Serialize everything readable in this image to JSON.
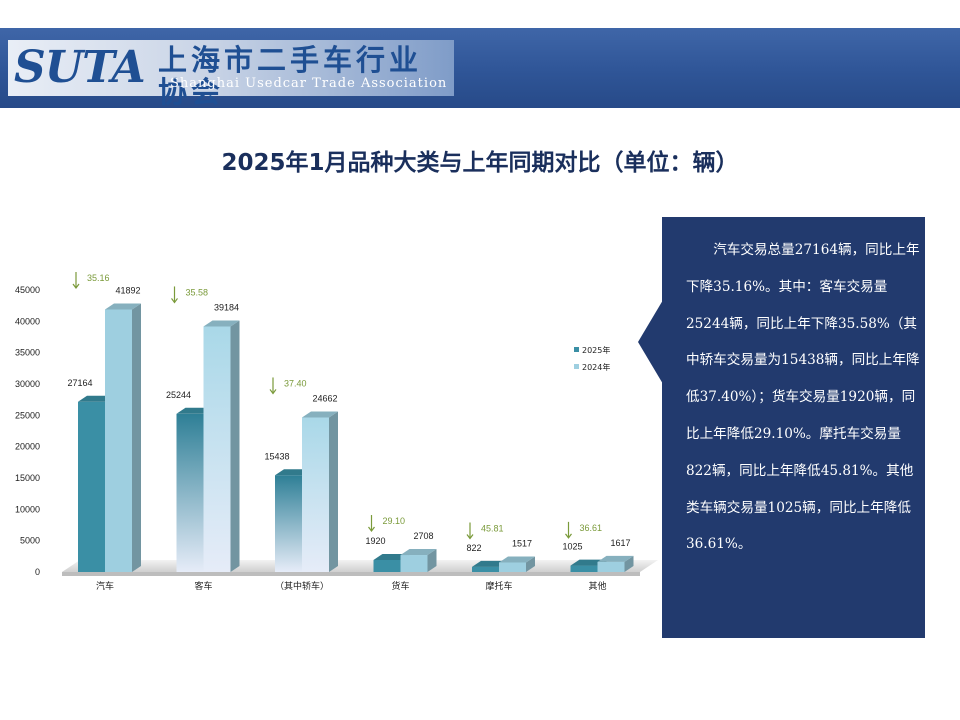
{
  "header": {
    "logo_text": "SUTA",
    "org_name_cn": "上海市二手车行业协会",
    "org_name_en": "Shanghai Usedcar Trade Association"
  },
  "title": "2025年1月品种大类与上年同期对比（单位：辆）",
  "colors": {
    "series_2025": "#3a8fa5",
    "series_2024": "#9ecfe0",
    "callout_bg": "#223a6e",
    "down_arrow": "#7a9a3a"
  },
  "callout": {
    "text": "汽车交易总量27164辆，同比上年下降35.16%。其中：客车交易量25244辆，同比上年下降35.58%（其中轿车交易量为15438辆，同比上年降低37.40%）；货车交易量1920辆，同比上年降低29.10%。摩托车交易量822辆，同比上年降低45.81%。其他类车辆交易量1025辆，同比上年降低36.61%。"
  },
  "chart_data": {
    "type": "bar",
    "categories": [
      "汽车",
      "客车",
      "（其中轿车）",
      "货车",
      "摩托车",
      "其他"
    ],
    "series": [
      {
        "name": "2025年",
        "values": [
          27164,
          25244,
          15438,
          1920,
          822,
          1025
        ]
      },
      {
        "name": "2024年",
        "values": [
          41892,
          39184,
          24662,
          2708,
          1517,
          1617
        ]
      }
    ],
    "yoy_decline_pct": [
      "35.16",
      "35.58",
      "37.40",
      "29.10",
      "45.81",
      "36.61"
    ],
    "yticks": [
      0,
      5000,
      10000,
      15000,
      20000,
      25000,
      30000,
      35000,
      40000,
      45000
    ],
    "ylim": [
      0,
      45000
    ],
    "legend_position": "right",
    "grid": false
  }
}
